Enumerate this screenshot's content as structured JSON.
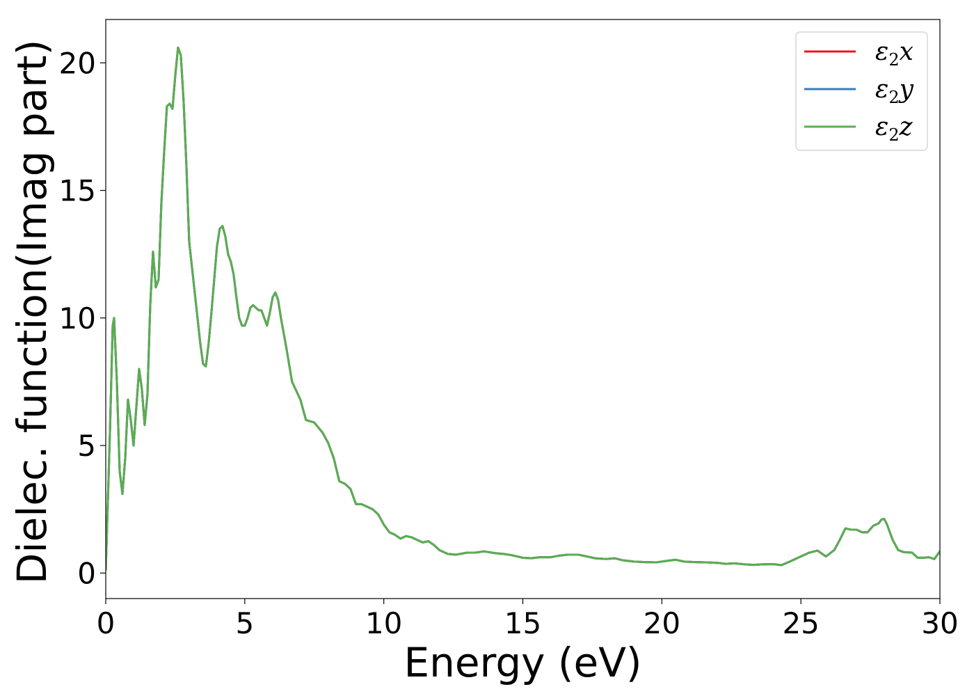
{
  "chart_data": {
    "type": "line",
    "xlabel": "Energy (eV)",
    "ylabel": "Dielec. function(Imag part)",
    "xlim": [
      0,
      30
    ],
    "ylim": [
      -1,
      21.7
    ],
    "xticks": [
      0,
      5,
      10,
      15,
      20,
      25,
      30
    ],
    "yticks": [
      0,
      5,
      10,
      15,
      20
    ],
    "xtick_labels": [
      "0",
      "5",
      "10",
      "15",
      "20",
      "25",
      "30"
    ],
    "ytick_labels": [
      "0",
      "5",
      "10",
      "15",
      "20"
    ],
    "grid": false,
    "legend_position": "top-right",
    "series": [
      {
        "name": "ε2x",
        "sym": "ε",
        "sub": "2",
        "comp": "x",
        "color": "#e41a1c",
        "x": [
          0.0,
          0.15,
          0.25,
          0.3,
          0.4,
          0.5,
          0.6,
          0.7,
          0.8,
          0.9,
          1.0,
          1.1,
          1.2,
          1.3,
          1.4,
          1.5,
          1.6,
          1.7,
          1.8,
          1.9,
          2.0,
          2.1,
          2.2,
          2.3,
          2.4,
          2.5,
          2.6,
          2.7,
          2.8,
          2.9,
          3.0,
          3.2,
          3.4,
          3.5,
          3.6,
          3.7,
          3.8,
          4.0,
          4.1,
          4.2,
          4.3,
          4.4,
          4.5,
          4.6,
          4.7,
          4.8,
          4.9,
          5.0,
          5.1,
          5.2,
          5.3,
          5.4,
          5.5,
          5.6,
          5.7,
          5.8,
          5.9,
          6.0,
          6.1,
          6.2,
          6.3,
          6.5,
          6.7,
          7.0,
          7.2,
          7.5,
          7.8,
          8.0,
          8.2,
          8.4,
          8.6,
          8.8,
          9.0,
          9.2,
          9.4,
          9.6,
          9.8,
          10.0,
          10.2,
          10.4,
          10.6,
          10.8,
          11.0,
          11.2,
          11.4,
          11.6,
          11.8,
          12.0,
          12.3,
          12.6,
          13.0,
          13.3,
          13.6,
          14.0,
          14.3,
          14.6,
          15.0,
          15.3,
          15.6,
          16.0,
          16.3,
          16.6,
          17.0,
          17.3,
          17.6,
          18.0,
          18.3,
          18.6,
          19.0,
          19.4,
          19.8,
          20.2,
          20.5,
          20.8,
          21.2,
          21.6,
          22.0,
          22.3,
          22.6,
          23.0,
          23.3,
          23.6,
          24.0,
          24.3,
          24.6,
          25.0,
          25.3,
          25.6,
          25.9,
          26.2,
          26.4,
          26.6,
          26.8,
          27.0,
          27.2,
          27.4,
          27.6,
          27.8,
          27.9,
          28.0,
          28.1,
          28.3,
          28.5,
          28.7,
          29.0,
          29.2,
          29.4,
          29.6,
          29.8,
          30.0
        ],
        "y": [
          0.1,
          5.5,
          9.7,
          10.0,
          7.5,
          4.0,
          3.1,
          4.5,
          6.8,
          6.0,
          5.0,
          6.5,
          8.0,
          7.2,
          5.8,
          7.0,
          10.5,
          12.6,
          11.2,
          11.5,
          14.5,
          16.5,
          18.3,
          18.4,
          18.2,
          19.5,
          20.6,
          20.3,
          18.5,
          16.0,
          13.0,
          11.0,
          9.0,
          8.2,
          8.1,
          9.0,
          10.2,
          12.8,
          13.5,
          13.6,
          13.2,
          12.5,
          12.2,
          11.7,
          10.8,
          10.0,
          9.7,
          9.7,
          10.0,
          10.4,
          10.5,
          10.4,
          10.3,
          10.3,
          10.0,
          9.7,
          10.2,
          10.8,
          11.0,
          10.7,
          10.0,
          8.8,
          7.5,
          6.8,
          6.0,
          5.9,
          5.5,
          5.1,
          4.5,
          3.6,
          3.5,
          3.3,
          2.7,
          2.7,
          2.6,
          2.5,
          2.3,
          1.9,
          1.6,
          1.5,
          1.35,
          1.45,
          1.4,
          1.3,
          1.2,
          1.25,
          1.1,
          0.9,
          0.75,
          0.72,
          0.8,
          0.8,
          0.85,
          0.78,
          0.75,
          0.7,
          0.6,
          0.58,
          0.62,
          0.62,
          0.68,
          0.72,
          0.72,
          0.65,
          0.58,
          0.55,
          0.58,
          0.5,
          0.45,
          0.43,
          0.42,
          0.48,
          0.52,
          0.45,
          0.43,
          0.42,
          0.4,
          0.36,
          0.38,
          0.34,
          0.32,
          0.34,
          0.35,
          0.31,
          0.45,
          0.65,
          0.8,
          0.88,
          0.65,
          0.9,
          1.3,
          1.75,
          1.7,
          1.7,
          1.6,
          1.6,
          1.85,
          1.95,
          2.1,
          2.12,
          1.9,
          1.3,
          0.9,
          0.82,
          0.8,
          0.6,
          0.6,
          0.62,
          0.55,
          0.85
        ]
      },
      {
        "name": "ε2y",
        "sym": "ε",
        "sub": "2",
        "comp": "y",
        "color": "#377eb8",
        "x": [
          0.0,
          0.15,
          0.25,
          0.3,
          0.4,
          0.5,
          0.6,
          0.7,
          0.8,
          0.9,
          1.0,
          1.1,
          1.2,
          1.3,
          1.4,
          1.5,
          1.6,
          1.7,
          1.8,
          1.9,
          2.0,
          2.1,
          2.2,
          2.3,
          2.4,
          2.5,
          2.6,
          2.7,
          2.8,
          2.9,
          3.0,
          3.2,
          3.4,
          3.5,
          3.6,
          3.7,
          3.8,
          4.0,
          4.1,
          4.2,
          4.3,
          4.4,
          4.5,
          4.6,
          4.7,
          4.8,
          4.9,
          5.0,
          5.1,
          5.2,
          5.3,
          5.4,
          5.5,
          5.6,
          5.7,
          5.8,
          5.9,
          6.0,
          6.1,
          6.2,
          6.3,
          6.5,
          6.7,
          7.0,
          7.2,
          7.5,
          7.8,
          8.0,
          8.2,
          8.4,
          8.6,
          8.8,
          9.0,
          9.2,
          9.4,
          9.6,
          9.8,
          10.0,
          10.2,
          10.4,
          10.6,
          10.8,
          11.0,
          11.2,
          11.4,
          11.6,
          11.8,
          12.0,
          12.3,
          12.6,
          13.0,
          13.3,
          13.6,
          14.0,
          14.3,
          14.6,
          15.0,
          15.3,
          15.6,
          16.0,
          16.3,
          16.6,
          17.0,
          17.3,
          17.6,
          18.0,
          18.3,
          18.6,
          19.0,
          19.4,
          19.8,
          20.2,
          20.5,
          20.8,
          21.2,
          21.6,
          22.0,
          22.3,
          22.6,
          23.0,
          23.3,
          23.6,
          24.0,
          24.3,
          24.6,
          25.0,
          25.3,
          25.6,
          25.9,
          26.2,
          26.4,
          26.6,
          26.8,
          27.0,
          27.2,
          27.4,
          27.6,
          27.8,
          27.9,
          28.0,
          28.1,
          28.3,
          28.5,
          28.7,
          29.0,
          29.2,
          29.4,
          29.6,
          29.8,
          30.0
        ],
        "y": [
          0.1,
          5.5,
          9.7,
          10.0,
          7.5,
          4.0,
          3.1,
          4.5,
          6.8,
          6.0,
          5.0,
          6.5,
          8.0,
          7.2,
          5.8,
          7.0,
          10.5,
          12.6,
          11.2,
          11.5,
          14.5,
          16.5,
          18.3,
          18.4,
          18.2,
          19.5,
          20.6,
          20.3,
          18.5,
          16.0,
          13.0,
          11.0,
          9.0,
          8.2,
          8.1,
          9.0,
          10.2,
          12.8,
          13.5,
          13.6,
          13.2,
          12.5,
          12.2,
          11.7,
          10.8,
          10.0,
          9.7,
          9.7,
          10.0,
          10.4,
          10.5,
          10.4,
          10.3,
          10.3,
          10.0,
          9.7,
          10.2,
          10.8,
          11.0,
          10.7,
          10.0,
          8.8,
          7.5,
          6.8,
          6.0,
          5.9,
          5.5,
          5.1,
          4.5,
          3.6,
          3.5,
          3.3,
          2.7,
          2.7,
          2.6,
          2.5,
          2.3,
          1.9,
          1.6,
          1.5,
          1.35,
          1.45,
          1.4,
          1.3,
          1.2,
          1.25,
          1.1,
          0.9,
          0.75,
          0.72,
          0.8,
          0.8,
          0.85,
          0.78,
          0.75,
          0.7,
          0.6,
          0.58,
          0.62,
          0.62,
          0.68,
          0.72,
          0.72,
          0.65,
          0.58,
          0.55,
          0.58,
          0.5,
          0.45,
          0.43,
          0.42,
          0.48,
          0.52,
          0.45,
          0.43,
          0.42,
          0.4,
          0.36,
          0.38,
          0.34,
          0.32,
          0.34,
          0.35,
          0.31,
          0.45,
          0.65,
          0.8,
          0.88,
          0.65,
          0.9,
          1.3,
          1.75,
          1.7,
          1.7,
          1.6,
          1.6,
          1.85,
          1.95,
          2.1,
          2.12,
          1.9,
          1.3,
          0.9,
          0.82,
          0.8,
          0.6,
          0.6,
          0.62,
          0.55,
          0.85
        ]
      },
      {
        "name": "ε2z",
        "sym": "ε",
        "sub": "2",
        "comp": "z",
        "color": "#5aad52",
        "x": [
          0.0,
          0.15,
          0.25,
          0.3,
          0.4,
          0.5,
          0.6,
          0.7,
          0.8,
          0.9,
          1.0,
          1.1,
          1.2,
          1.3,
          1.4,
          1.5,
          1.6,
          1.7,
          1.8,
          1.9,
          2.0,
          2.1,
          2.2,
          2.3,
          2.4,
          2.5,
          2.6,
          2.7,
          2.8,
          2.9,
          3.0,
          3.2,
          3.4,
          3.5,
          3.6,
          3.7,
          3.8,
          4.0,
          4.1,
          4.2,
          4.3,
          4.4,
          4.5,
          4.6,
          4.7,
          4.8,
          4.9,
          5.0,
          5.1,
          5.2,
          5.3,
          5.4,
          5.5,
          5.6,
          5.7,
          5.8,
          5.9,
          6.0,
          6.1,
          6.2,
          6.3,
          6.5,
          6.7,
          7.0,
          7.2,
          7.5,
          7.8,
          8.0,
          8.2,
          8.4,
          8.6,
          8.8,
          9.0,
          9.2,
          9.4,
          9.6,
          9.8,
          10.0,
          10.2,
          10.4,
          10.6,
          10.8,
          11.0,
          11.2,
          11.4,
          11.6,
          11.8,
          12.0,
          12.3,
          12.6,
          13.0,
          13.3,
          13.6,
          14.0,
          14.3,
          14.6,
          15.0,
          15.3,
          15.6,
          16.0,
          16.3,
          16.6,
          17.0,
          17.3,
          17.6,
          18.0,
          18.3,
          18.6,
          19.0,
          19.4,
          19.8,
          20.2,
          20.5,
          20.8,
          21.2,
          21.6,
          22.0,
          22.3,
          22.6,
          23.0,
          23.3,
          23.6,
          24.0,
          24.3,
          24.6,
          25.0,
          25.3,
          25.6,
          25.9,
          26.2,
          26.4,
          26.6,
          26.8,
          27.0,
          27.2,
          27.4,
          27.6,
          27.8,
          27.9,
          28.0,
          28.1,
          28.3,
          28.5,
          28.7,
          29.0,
          29.2,
          29.4,
          29.6,
          29.8,
          30.0
        ],
        "y": [
          0.1,
          5.5,
          9.7,
          10.0,
          7.5,
          4.0,
          3.1,
          4.5,
          6.8,
          6.0,
          5.0,
          6.5,
          8.0,
          7.2,
          5.8,
          7.0,
          10.5,
          12.6,
          11.2,
          11.5,
          14.5,
          16.5,
          18.3,
          18.4,
          18.2,
          19.5,
          20.6,
          20.3,
          18.5,
          16.0,
          13.0,
          11.0,
          9.0,
          8.2,
          8.1,
          9.0,
          10.2,
          12.8,
          13.5,
          13.6,
          13.2,
          12.5,
          12.2,
          11.7,
          10.8,
          10.0,
          9.7,
          9.7,
          10.0,
          10.4,
          10.5,
          10.4,
          10.3,
          10.3,
          10.0,
          9.7,
          10.2,
          10.8,
          11.0,
          10.7,
          10.0,
          8.8,
          7.5,
          6.8,
          6.0,
          5.9,
          5.5,
          5.1,
          4.5,
          3.6,
          3.5,
          3.3,
          2.7,
          2.7,
          2.6,
          2.5,
          2.3,
          1.9,
          1.6,
          1.5,
          1.35,
          1.45,
          1.4,
          1.3,
          1.2,
          1.25,
          1.1,
          0.9,
          0.75,
          0.72,
          0.8,
          0.8,
          0.85,
          0.78,
          0.75,
          0.7,
          0.6,
          0.58,
          0.62,
          0.62,
          0.68,
          0.72,
          0.72,
          0.65,
          0.58,
          0.55,
          0.58,
          0.5,
          0.45,
          0.43,
          0.42,
          0.48,
          0.52,
          0.45,
          0.43,
          0.42,
          0.4,
          0.36,
          0.38,
          0.34,
          0.32,
          0.34,
          0.35,
          0.31,
          0.45,
          0.65,
          0.8,
          0.88,
          0.65,
          0.9,
          1.3,
          1.75,
          1.7,
          1.7,
          1.6,
          1.6,
          1.85,
          1.95,
          2.1,
          2.12,
          1.9,
          1.3,
          0.9,
          0.82,
          0.8,
          0.6,
          0.6,
          0.62,
          0.55,
          0.85
        ]
      }
    ]
  }
}
